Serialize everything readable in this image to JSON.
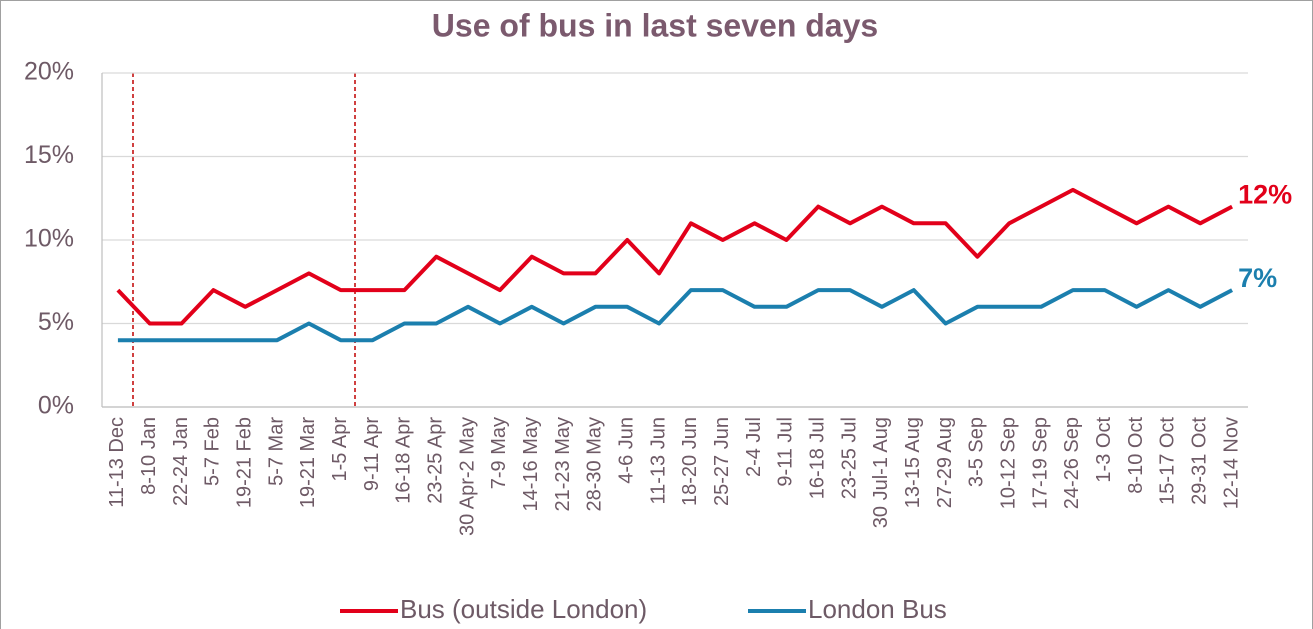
{
  "chart_data": {
    "type": "line",
    "title": "Use of bus in last seven days",
    "categories": [
      "11-13 Dec",
      "8-10 Jan",
      "22-24 Jan",
      "5-7 Feb",
      "19-21 Feb",
      "5-7 Mar",
      "19-21 Mar",
      "1-5 Apr",
      "9-11 Apr",
      "16-18 Apr",
      "23-25 Apr",
      "30 Apr-2 May",
      "7-9 May",
      "14-16 May",
      "21-23 May",
      "28-30 May",
      "4-6 Jun",
      "11-13 Jun",
      "18-20 Jun",
      "25-27 Jun",
      "2-4 Jul",
      "9-11 Jul",
      "16-18 Jul",
      "23-25 Jul",
      "30 Jul-1 Aug",
      "13-15 Aug",
      "27-29 Aug",
      "3-5 Sep",
      "10-12 Sep",
      "17-19 Sep",
      "24-26 Sep",
      "1-3 Oct",
      "8-10 Oct",
      "15-17 Oct",
      "29-31 Oct",
      "12-14 Nov"
    ],
    "series": [
      {
        "name": "Bus (outside London)",
        "color": "#e2001a",
        "values": [
          7,
          5,
          5,
          7,
          6,
          7,
          8,
          7,
          7,
          7,
          9,
          8,
          7,
          9,
          8,
          8,
          10,
          8,
          11,
          10,
          11,
          10,
          12,
          11,
          12,
          11,
          11,
          9,
          11,
          12,
          13,
          12,
          11,
          12,
          11,
          12
        ],
        "value_labels": [
          null,
          null,
          null,
          null,
          null,
          null,
          null,
          null,
          null,
          null,
          null,
          null,
          null,
          null,
          null,
          null,
          null,
          null,
          null,
          null,
          null,
          null,
          null,
          null,
          null,
          null,
          null,
          null,
          null,
          null,
          null,
          null,
          null,
          null,
          null,
          "12%"
        ]
      },
      {
        "name": "London Bus",
        "color": "#1b7fae",
        "values": [
          4,
          4,
          4,
          4,
          4,
          4,
          5,
          4,
          4,
          5,
          5,
          6,
          5,
          6,
          5,
          6,
          6,
          5,
          7,
          7,
          6,
          6,
          7,
          7,
          6,
          7,
          5,
          6,
          6,
          6,
          7,
          7,
          6,
          7,
          6,
          7
        ],
        "value_labels": [
          null,
          null,
          null,
          null,
          null,
          null,
          null,
          null,
          null,
          null,
          null,
          null,
          null,
          null,
          null,
          null,
          null,
          null,
          null,
          null,
          null,
          null,
          null,
          null,
          null,
          null,
          null,
          null,
          null,
          null,
          null,
          null,
          null,
          null,
          null,
          "7%"
        ]
      }
    ],
    "ylim": [
      0,
      20
    ],
    "yticks": [
      {
        "value": 0,
        "label": "0%"
      },
      {
        "value": 5,
        "label": "5%"
      },
      {
        "value": 10,
        "label": "10%"
      },
      {
        "value": 15,
        "label": "15%"
      },
      {
        "value": 20,
        "label": "20%"
      }
    ],
    "grid": true,
    "legend": "bottom"
  }
}
